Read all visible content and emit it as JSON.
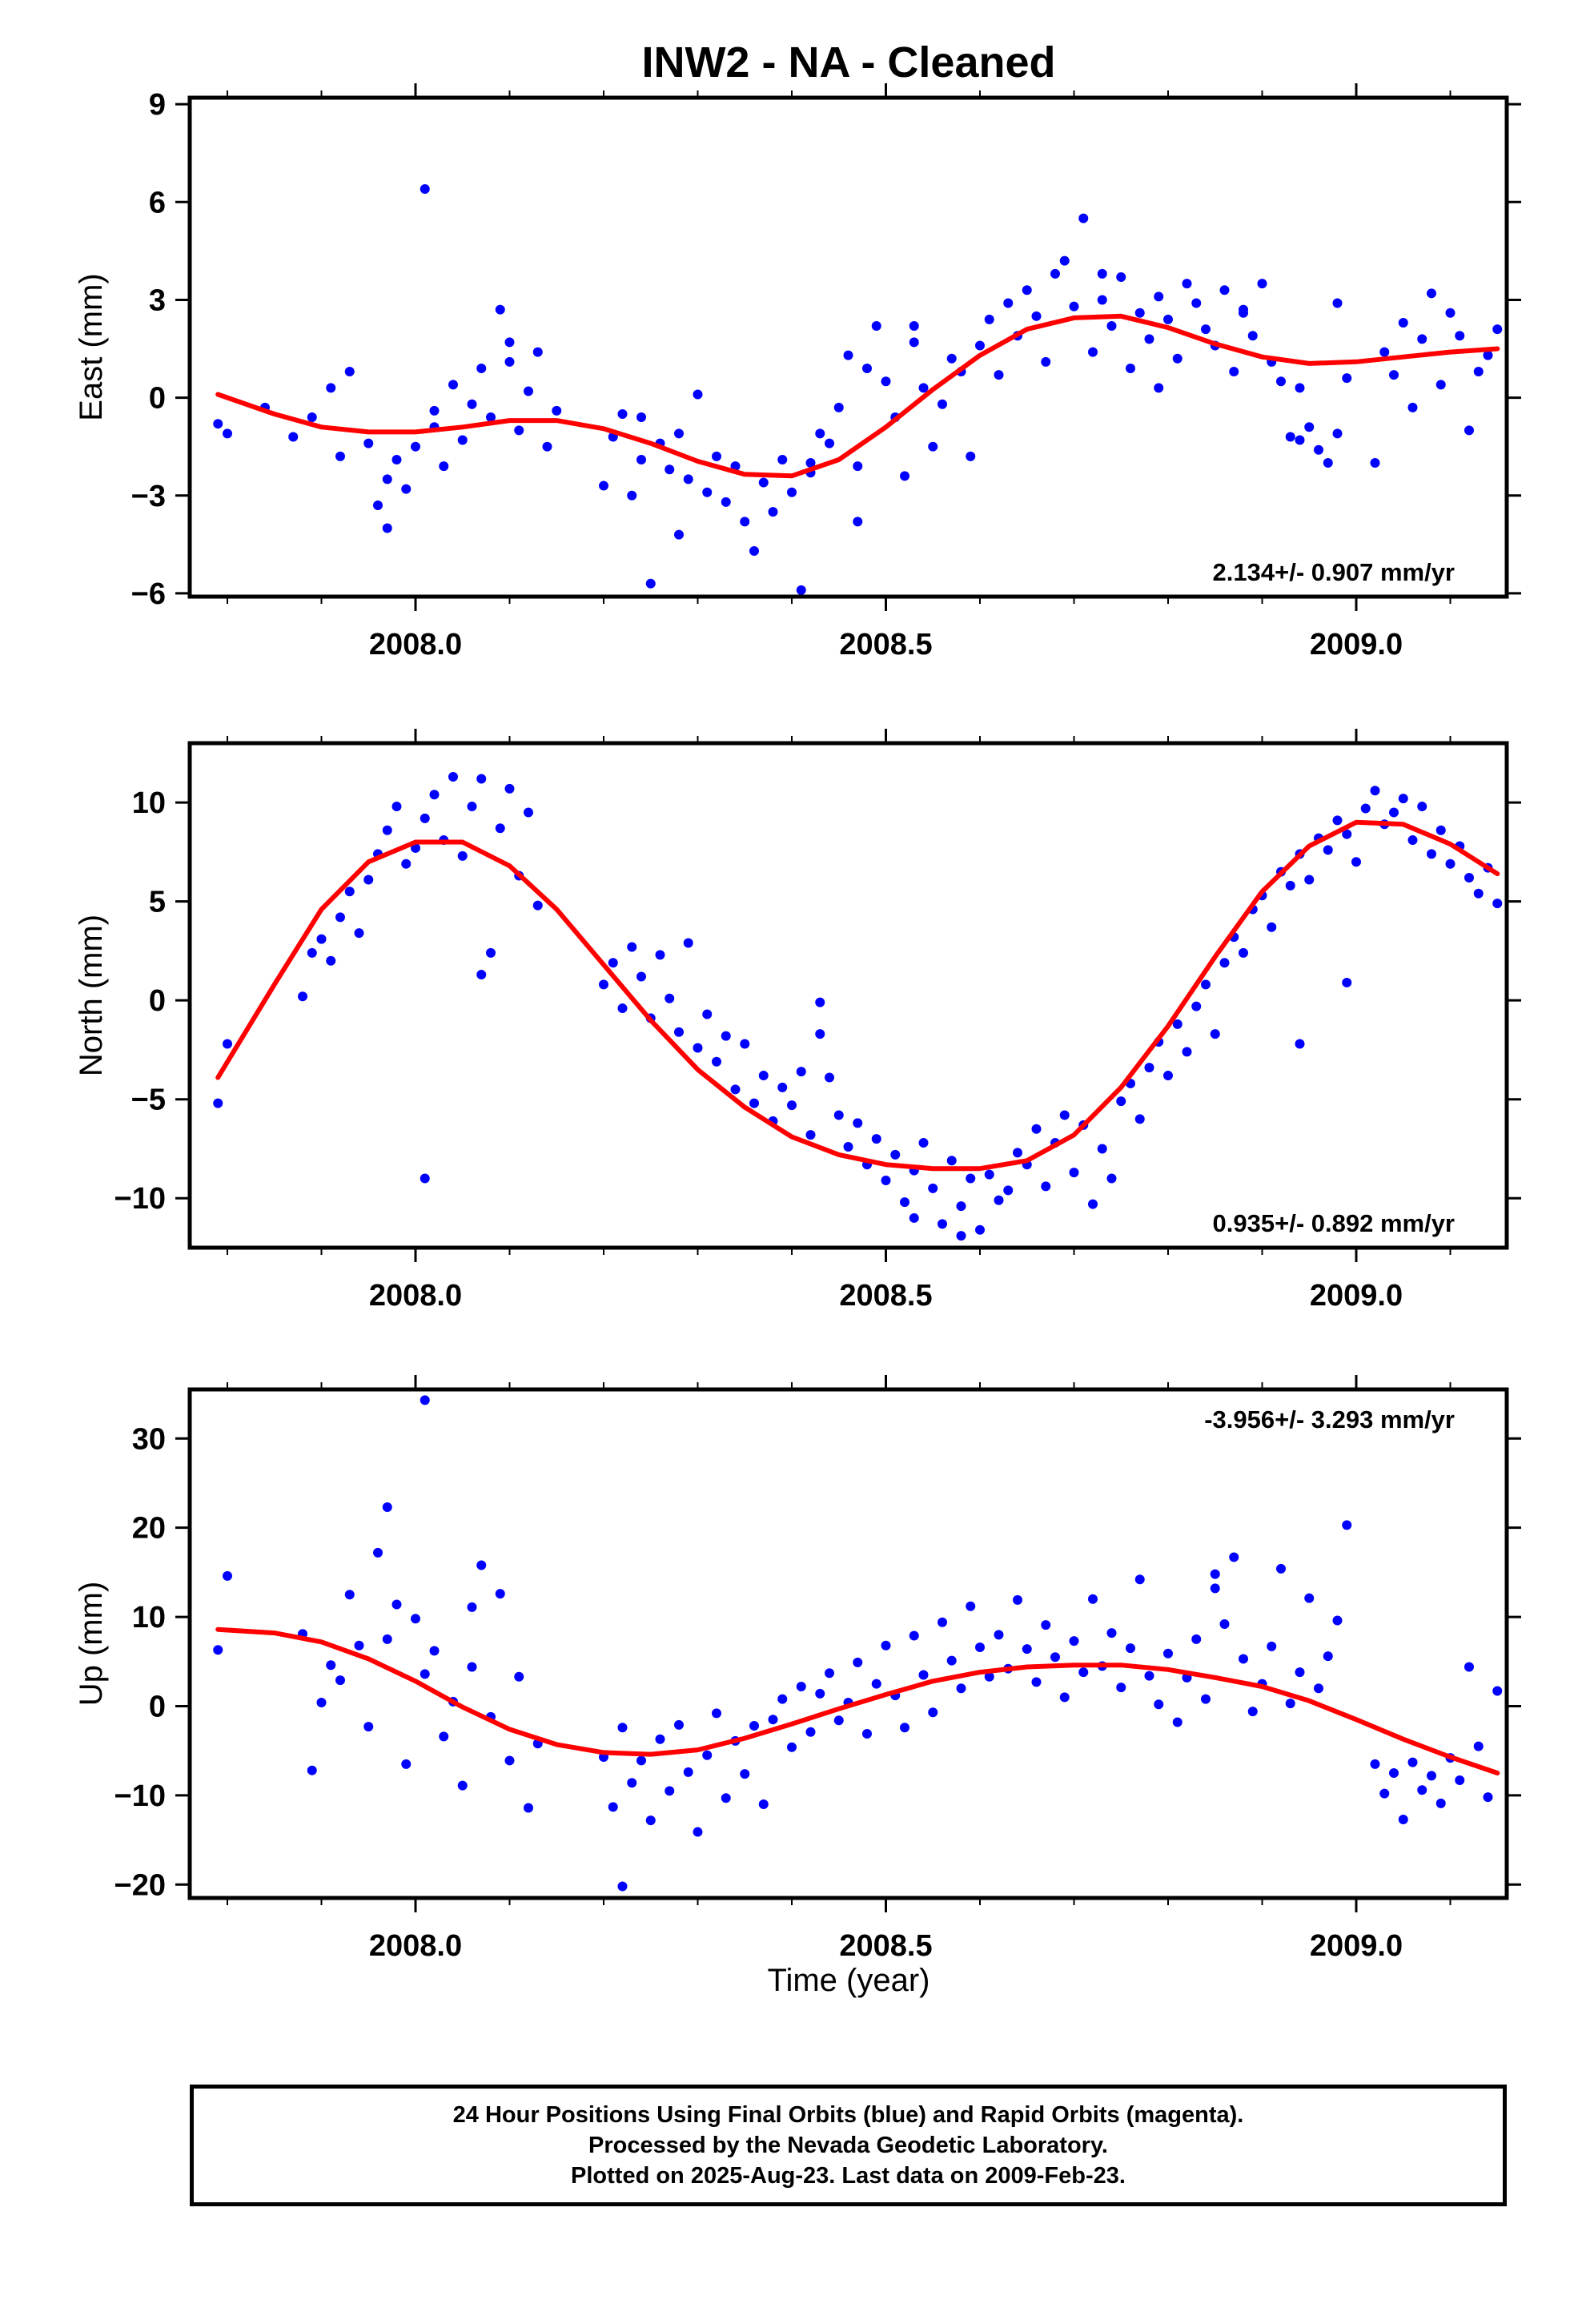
{
  "title": "INW2  - NA - Cleaned",
  "xlabel": "Time (year)",
  "caption": {
    "line1": "24 Hour Positions Using Final Orbits (blue) and Rapid Orbits (magenta).",
    "line2": "Processed by the Nevada Geodetic Laboratory.",
    "line3": "Plotted on 2025-Aug-23. Last data on 2009-Feb-23."
  },
  "colors": {
    "points": "#0000ff",
    "fit": "#ff0000",
    "axes": "#000000"
  },
  "chart_data": [
    {
      "type": "scatter",
      "ylabel": "East (mm)",
      "xlim": [
        2007.76,
        2009.16
      ],
      "ylim": [
        -6.1,
        9.2
      ],
      "xticks": [
        2008.0,
        2008.5,
        2009.0
      ],
      "xtick_labels": [
        "2008.0",
        "2008.5",
        "2009.0"
      ],
      "yticks": [
        -6,
        -3,
        0,
        3,
        6,
        9
      ],
      "ytick_labels": [
        "−6",
        "−3",
        "0",
        "3",
        "6",
        "9"
      ],
      "rate_label": "2.134+/- 0.907 mm/yr",
      "rate_position": "bottom-right",
      "fit": {
        "x": [
          2007.79,
          2007.85,
          2007.9,
          2007.95,
          2008.0,
          2008.05,
          2008.1,
          2008.15,
          2008.2,
          2008.25,
          2008.3,
          2008.35,
          2008.4,
          2008.45,
          2008.5,
          2008.55,
          2008.6,
          2008.65,
          2008.7,
          2008.75,
          2008.8,
          2008.85,
          2008.9,
          2008.95,
          2009.0,
          2009.05,
          2009.1,
          2009.15
        ],
        "y": [
          0.1,
          -0.5,
          -0.9,
          -1.05,
          -1.05,
          -0.9,
          -0.7,
          -0.7,
          -0.95,
          -1.4,
          -1.95,
          -2.35,
          -2.4,
          -1.9,
          -0.9,
          0.25,
          1.3,
          2.1,
          2.45,
          2.5,
          2.15,
          1.65,
          1.25,
          1.05,
          1.1,
          1.25,
          1.4,
          1.5
        ]
      },
      "points": {
        "x": [
          2007.79,
          2007.8,
          2007.84,
          2007.87,
          2007.89,
          2007.91,
          2007.92,
          2007.93,
          2007.95,
          2007.96,
          2007.97,
          2007.98,
          2007.99,
          2008.0,
          2008.01,
          2008.02,
          2008.03,
          2008.04,
          2008.05,
          2008.06,
          2008.07,
          2008.08,
          2008.09,
          2008.1,
          2008.11,
          2008.12,
          2008.13,
          2008.14,
          2008.15,
          2008.2,
          2008.21,
          2008.22,
          2008.23,
          2008.24,
          2008.25,
          2008.26,
          2008.27,
          2008.28,
          2008.29,
          2008.3,
          2008.31,
          2008.32,
          2008.33,
          2008.34,
          2008.35,
          2008.36,
          2008.37,
          2008.38,
          2008.39,
          2008.4,
          2008.41,
          2008.42,
          2008.43,
          2008.44,
          2008.45,
          2008.46,
          2008.47,
          2008.48,
          2008.49,
          2008.5,
          2008.51,
          2008.52,
          2008.53,
          2008.54,
          2008.55,
          2008.56,
          2008.57,
          2008.58,
          2008.59,
          2008.6,
          2008.61,
          2008.62,
          2008.63,
          2008.64,
          2008.65,
          2008.66,
          2008.67,
          2008.68,
          2008.69,
          2008.7,
          2008.71,
          2008.72,
          2008.73,
          2008.74,
          2008.75,
          2008.76,
          2008.77,
          2008.78,
          2008.79,
          2008.8,
          2008.81,
          2008.82,
          2008.83,
          2008.84,
          2008.85,
          2008.86,
          2008.87,
          2008.88,
          2008.89,
          2008.9,
          2008.91,
          2008.92,
          2008.93,
          2008.94,
          2008.95,
          2008.96,
          2008.97,
          2008.98,
          2008.99,
          2009.02,
          2009.03,
          2009.04,
          2009.05,
          2009.06,
          2009.07,
          2009.08,
          2009.09,
          2009.1,
          2009.11,
          2009.12,
          2009.13,
          2009.14,
          2009.15,
          2008.02,
          2007.97,
          2008.1,
          2008.24,
          2008.28,
          2008.42,
          2008.47,
          2008.53,
          2008.73,
          2008.79,
          2008.88,
          2008.94,
          2008.98
        ],
        "y": [
          -0.8,
          -1.1,
          -0.3,
          -1.2,
          -0.6,
          0.3,
          -1.8,
          0.8,
          -1.4,
          -3.3,
          -2.5,
          -1.9,
          -2.8,
          -1.5,
          6.4,
          -0.9,
          -2.1,
          0.4,
          -1.3,
          -0.2,
          0.9,
          -0.6,
          2.7,
          1.1,
          -1.0,
          0.2,
          1.4,
          -1.5,
          -0.4,
          -2.7,
          -1.2,
          -0.5,
          -3.0,
          -1.9,
          -5.7,
          -1.4,
          -2.2,
          -1.1,
          -2.5,
          0.1,
          -2.9,
          -1.8,
          -3.2,
          -2.1,
          -3.8,
          -4.7,
          -2.6,
          -3.5,
          -1.9,
          -2.9,
          -5.9,
          -2.3,
          -1.1,
          -1.4,
          -0.3,
          1.3,
          -2.1,
          0.9,
          2.2,
          0.5,
          -0.6,
          -2.4,
          1.7,
          0.3,
          -1.5,
          -0.2,
          1.2,
          0.8,
          -1.8,
          1.6,
          2.4,
          0.7,
          2.9,
          1.9,
          3.3,
          2.5,
          1.1,
          3.8,
          4.2,
          2.8,
          5.5,
          1.4,
          3.0,
          2.2,
          3.7,
          0.9,
          2.6,
          1.8,
          3.1,
          2.4,
          1.2,
          3.5,
          2.9,
          2.1,
          1.6,
          3.3,
          0.8,
          2.7,
          1.9,
          3.5,
          1.1,
          0.5,
          -1.2,
          0.3,
          -0.9,
          -1.6,
          -2.0,
          2.9,
          0.6,
          -2.0,
          1.4,
          0.7,
          2.3,
          -0.3,
          1.8,
          3.2,
          0.4,
          2.6,
          1.9,
          -1.0,
          0.8,
          1.3,
          2.1,
          -0.4,
          -4.0,
          1.7,
          -0.6,
          -4.2,
          -2.0,
          -3.8,
          2.2,
          3.8,
          0.3,
          2.6,
          -1.3,
          -1.1
        ]
      }
    },
    {
      "type": "scatter",
      "ylabel": "North (mm)",
      "xlim": [
        2007.76,
        2009.16
      ],
      "ylim": [
        -12.5,
        13.0
      ],
      "xticks": [
        2008.0,
        2008.5,
        2009.0
      ],
      "xtick_labels": [
        "2008.0",
        "2008.5",
        "2009.0"
      ],
      "yticks": [
        -10,
        -5,
        0,
        5,
        10
      ],
      "ytick_labels": [
        "−10",
        "−5",
        "0",
        "5",
        "10"
      ],
      "rate_label": "0.935+/- 0.892 mm/yr",
      "rate_position": "bottom-right",
      "fit": {
        "x": [
          2007.79,
          2007.85,
          2007.9,
          2007.95,
          2008.0,
          2008.05,
          2008.1,
          2008.15,
          2008.2,
          2008.25,
          2008.3,
          2008.35,
          2008.4,
          2008.45,
          2008.5,
          2008.55,
          2008.6,
          2008.65,
          2008.7,
          2008.75,
          2008.8,
          2008.85,
          2008.9,
          2008.95,
          2009.0,
          2009.05,
          2009.1,
          2009.15
        ],
        "y": [
          -3.9,
          0.8,
          4.6,
          7.0,
          8.0,
          8.0,
          6.8,
          4.6,
          1.8,
          -1.0,
          -3.5,
          -5.4,
          -6.9,
          -7.8,
          -8.3,
          -8.5,
          -8.5,
          -8.1,
          -6.8,
          -4.4,
          -1.3,
          2.2,
          5.5,
          7.8,
          9.0,
          8.9,
          7.9,
          6.4
        ]
      },
      "points": {
        "x": [
          2007.79,
          2007.8,
          2007.88,
          2007.89,
          2007.9,
          2007.91,
          2007.92,
          2007.93,
          2007.94,
          2007.95,
          2007.96,
          2007.97,
          2007.98,
          2007.99,
          2008.0,
          2008.01,
          2008.02,
          2008.03,
          2008.04,
          2008.05,
          2008.06,
          2008.07,
          2008.08,
          2008.09,
          2008.1,
          2008.11,
          2008.12,
          2008.13,
          2008.2,
          2008.21,
          2008.22,
          2008.23,
          2008.24,
          2008.25,
          2008.26,
          2008.27,
          2008.28,
          2008.29,
          2008.3,
          2008.31,
          2008.32,
          2008.33,
          2008.34,
          2008.35,
          2008.36,
          2008.37,
          2008.38,
          2008.39,
          2008.4,
          2008.41,
          2008.42,
          2008.43,
          2008.44,
          2008.45,
          2008.46,
          2008.47,
          2008.48,
          2008.49,
          2008.5,
          2008.51,
          2008.52,
          2008.53,
          2008.54,
          2008.55,
          2008.56,
          2008.57,
          2008.58,
          2008.59,
          2008.6,
          2008.61,
          2008.62,
          2008.63,
          2008.64,
          2008.65,
          2008.66,
          2008.67,
          2008.68,
          2008.69,
          2008.7,
          2008.71,
          2008.72,
          2008.73,
          2008.74,
          2008.75,
          2008.76,
          2008.77,
          2008.78,
          2008.79,
          2008.8,
          2008.81,
          2008.82,
          2008.83,
          2008.84,
          2008.85,
          2008.86,
          2008.87,
          2008.88,
          2008.89,
          2008.9,
          2008.91,
          2008.92,
          2008.93,
          2008.94,
          2008.95,
          2008.96,
          2008.97,
          2008.98,
          2008.99,
          2009.0,
          2009.01,
          2009.02,
          2009.03,
          2009.04,
          2009.05,
          2009.06,
          2009.07,
          2009.08,
          2009.09,
          2009.1,
          2009.11,
          2009.12,
          2009.13,
          2009.14,
          2009.15,
          2008.01,
          2008.07,
          2008.43,
          2008.94,
          2008.99,
          2008.53,
          2008.58
        ],
        "y": [
          -5.2,
          -2.2,
          0.2,
          2.4,
          3.1,
          2.0,
          4.2,
          5.5,
          3.4,
          6.1,
          7.4,
          8.6,
          9.8,
          6.9,
          7.7,
          9.2,
          10.4,
          8.1,
          11.3,
          7.3,
          9.8,
          11.2,
          2.4,
          8.7,
          10.7,
          6.3,
          9.5,
          4.8,
          0.8,
          1.9,
          -0.4,
          2.7,
          1.2,
          -0.9,
          2.3,
          0.1,
          -1.6,
          2.9,
          -2.4,
          -0.7,
          -3.1,
          -1.8,
          -4.5,
          -2.2,
          -5.2,
          -3.8,
          -6.1,
          -4.4,
          -5.3,
          -3.6,
          -6.8,
          -1.7,
          -3.9,
          -5.8,
          -7.4,
          -6.2,
          -8.3,
          -7.0,
          -9.1,
          -7.8,
          -10.2,
          -8.6,
          -7.2,
          -9.5,
          -11.3,
          -8.1,
          -10.4,
          -9.0,
          -11.6,
          -8.8,
          -10.1,
          -9.6,
          -7.7,
          -8.3,
          -6.5,
          -9.4,
          -7.2,
          -5.8,
          -8.7,
          -6.3,
          -10.3,
          -7.5,
          -9.0,
          -5.1,
          -4.2,
          -6.0,
          -3.4,
          -2.1,
          -3.8,
          -1.2,
          -2.6,
          -0.3,
          0.8,
          -1.7,
          1.9,
          3.2,
          2.4,
          4.6,
          5.3,
          3.7,
          6.5,
          5.8,
          7.4,
          6.1,
          8.2,
          7.6,
          9.1,
          8.4,
          7.0,
          9.7,
          10.6,
          8.9,
          9.5,
          10.2,
          8.1,
          9.8,
          7.4,
          8.6,
          6.9,
          7.8,
          6.2,
          5.4,
          6.7,
          4.9,
          -9.0,
          1.3,
          -0.1,
          -2.2,
          0.9,
          -11.0,
          -11.9
        ]
      }
    },
    {
      "type": "scatter",
      "ylabel": "Up (mm)",
      "xlim": [
        2007.76,
        2009.16
      ],
      "ylim": [
        -21.5,
        35.5
      ],
      "xticks": [
        2008.0,
        2008.5,
        2009.0
      ],
      "xtick_labels": [
        "2008.0",
        "2008.5",
        "2009.0"
      ],
      "yticks": [
        -20,
        -10,
        0,
        10,
        20,
        30
      ],
      "ytick_labels": [
        "−20",
        "−10",
        "0",
        "10",
        "20",
        "30"
      ],
      "rate_label": "-3.956+/- 3.293 mm/yr",
      "rate_position": "top-right",
      "fit": {
        "x": [
          2007.79,
          2007.85,
          2007.9,
          2007.95,
          2008.0,
          2008.05,
          2008.1,
          2008.15,
          2008.2,
          2008.25,
          2008.3,
          2008.35,
          2008.4,
          2008.45,
          2008.5,
          2008.55,
          2008.6,
          2008.65,
          2008.7,
          2008.75,
          2008.8,
          2008.85,
          2008.9,
          2008.95,
          2009.0,
          2009.05,
          2009.1,
          2009.15
        ],
        "y": [
          8.6,
          8.2,
          7.2,
          5.3,
          2.8,
          -0.1,
          -2.6,
          -4.3,
          -5.2,
          -5.4,
          -4.9,
          -3.6,
          -2.0,
          -0.3,
          1.3,
          2.8,
          3.8,
          4.4,
          4.6,
          4.6,
          4.1,
          3.2,
          2.2,
          0.6,
          -1.5,
          -3.7,
          -5.7,
          -7.5
        ]
      },
      "points": {
        "x": [
          2007.79,
          2007.8,
          2007.88,
          2007.89,
          2007.9,
          2007.91,
          2007.92,
          2007.93,
          2007.94,
          2007.95,
          2007.96,
          2007.97,
          2007.98,
          2007.99,
          2008.0,
          2008.01,
          2008.02,
          2008.03,
          2008.04,
          2008.05,
          2008.06,
          2008.07,
          2008.08,
          2008.09,
          2008.1,
          2008.11,
          2008.12,
          2008.13,
          2008.2,
          2008.21,
          2008.22,
          2008.23,
          2008.24,
          2008.25,
          2008.26,
          2008.27,
          2008.28,
          2008.29,
          2008.3,
          2008.31,
          2008.32,
          2008.33,
          2008.34,
          2008.35,
          2008.36,
          2008.37,
          2008.38,
          2008.39,
          2008.4,
          2008.41,
          2008.42,
          2008.43,
          2008.44,
          2008.45,
          2008.46,
          2008.47,
          2008.48,
          2008.49,
          2008.5,
          2008.51,
          2008.52,
          2008.53,
          2008.54,
          2008.55,
          2008.56,
          2008.57,
          2008.58,
          2008.59,
          2008.6,
          2008.61,
          2008.62,
          2008.63,
          2008.64,
          2008.65,
          2008.66,
          2008.67,
          2008.68,
          2008.69,
          2008.7,
          2008.71,
          2008.72,
          2008.73,
          2008.74,
          2008.75,
          2008.76,
          2008.77,
          2008.78,
          2008.79,
          2008.8,
          2008.81,
          2008.82,
          2008.83,
          2008.84,
          2008.85,
          2008.86,
          2008.87,
          2008.88,
          2008.89,
          2008.9,
          2008.91,
          2008.92,
          2008.93,
          2008.94,
          2008.95,
          2008.96,
          2008.97,
          2008.98,
          2009.02,
          2009.03,
          2009.04,
          2009.05,
          2009.06,
          2009.07,
          2009.08,
          2009.09,
          2009.1,
          2009.11,
          2009.12,
          2009.13,
          2009.14,
          2009.15,
          2008.01,
          2008.22,
          2007.97,
          2008.99,
          2008.06,
          2008.85
        ],
        "y": [
          6.3,
          14.6,
          8.1,
          -7.2,
          0.4,
          4.6,
          2.9,
          12.5,
          6.8,
          -2.3,
          17.2,
          22.3,
          11.4,
          -6.5,
          9.8,
          3.6,
          6.2,
          -3.4,
          0.5,
          -8.9,
          4.4,
          15.8,
          -1.2,
          12.6,
          -6.1,
          3.3,
          -11.4,
          -4.2,
          -5.7,
          -11.3,
          -2.4,
          -8.6,
          -6.1,
          -12.8,
          -3.7,
          -9.5,
          -2.1,
          -7.4,
          -14.1,
          -5.5,
          -0.8,
          -10.3,
          -3.9,
          -7.6,
          -2.2,
          -11.0,
          -1.5,
          0.8,
          -4.6,
          2.2,
          -2.9,
          1.4,
          3.7,
          -1.6,
          0.4,
          4.9,
          -3.1,
          2.5,
          6.8,
          1.2,
          -2.4,
          7.9,
          3.5,
          -0.7,
          9.4,
          5.1,
          2.0,
          11.2,
          6.6,
          3.3,
          8.0,
          4.2,
          11.9,
          6.4,
          2.7,
          9.1,
          5.5,
          1.0,
          7.3,
          3.8,
          12.0,
          4.5,
          8.2,
          2.1,
          6.5,
          14.2,
          3.4,
          0.2,
          5.9,
          -1.8,
          3.2,
          7.5,
          0.8,
          14.8,
          9.2,
          16.7,
          5.3,
          -0.6,
          2.5,
          6.7,
          15.4,
          0.3,
          3.8,
          12.1,
          2.0,
          5.6,
          9.6,
          -6.5,
          -9.8,
          -7.5,
          -12.7,
          -6.3,
          -9.4,
          -7.8,
          -10.9,
          -5.8,
          -8.3,
          4.4,
          -4.5,
          -10.2,
          1.7,
          34.3,
          -20.2,
          7.5,
          20.3,
          11.1,
          13.2
        ]
      }
    }
  ]
}
